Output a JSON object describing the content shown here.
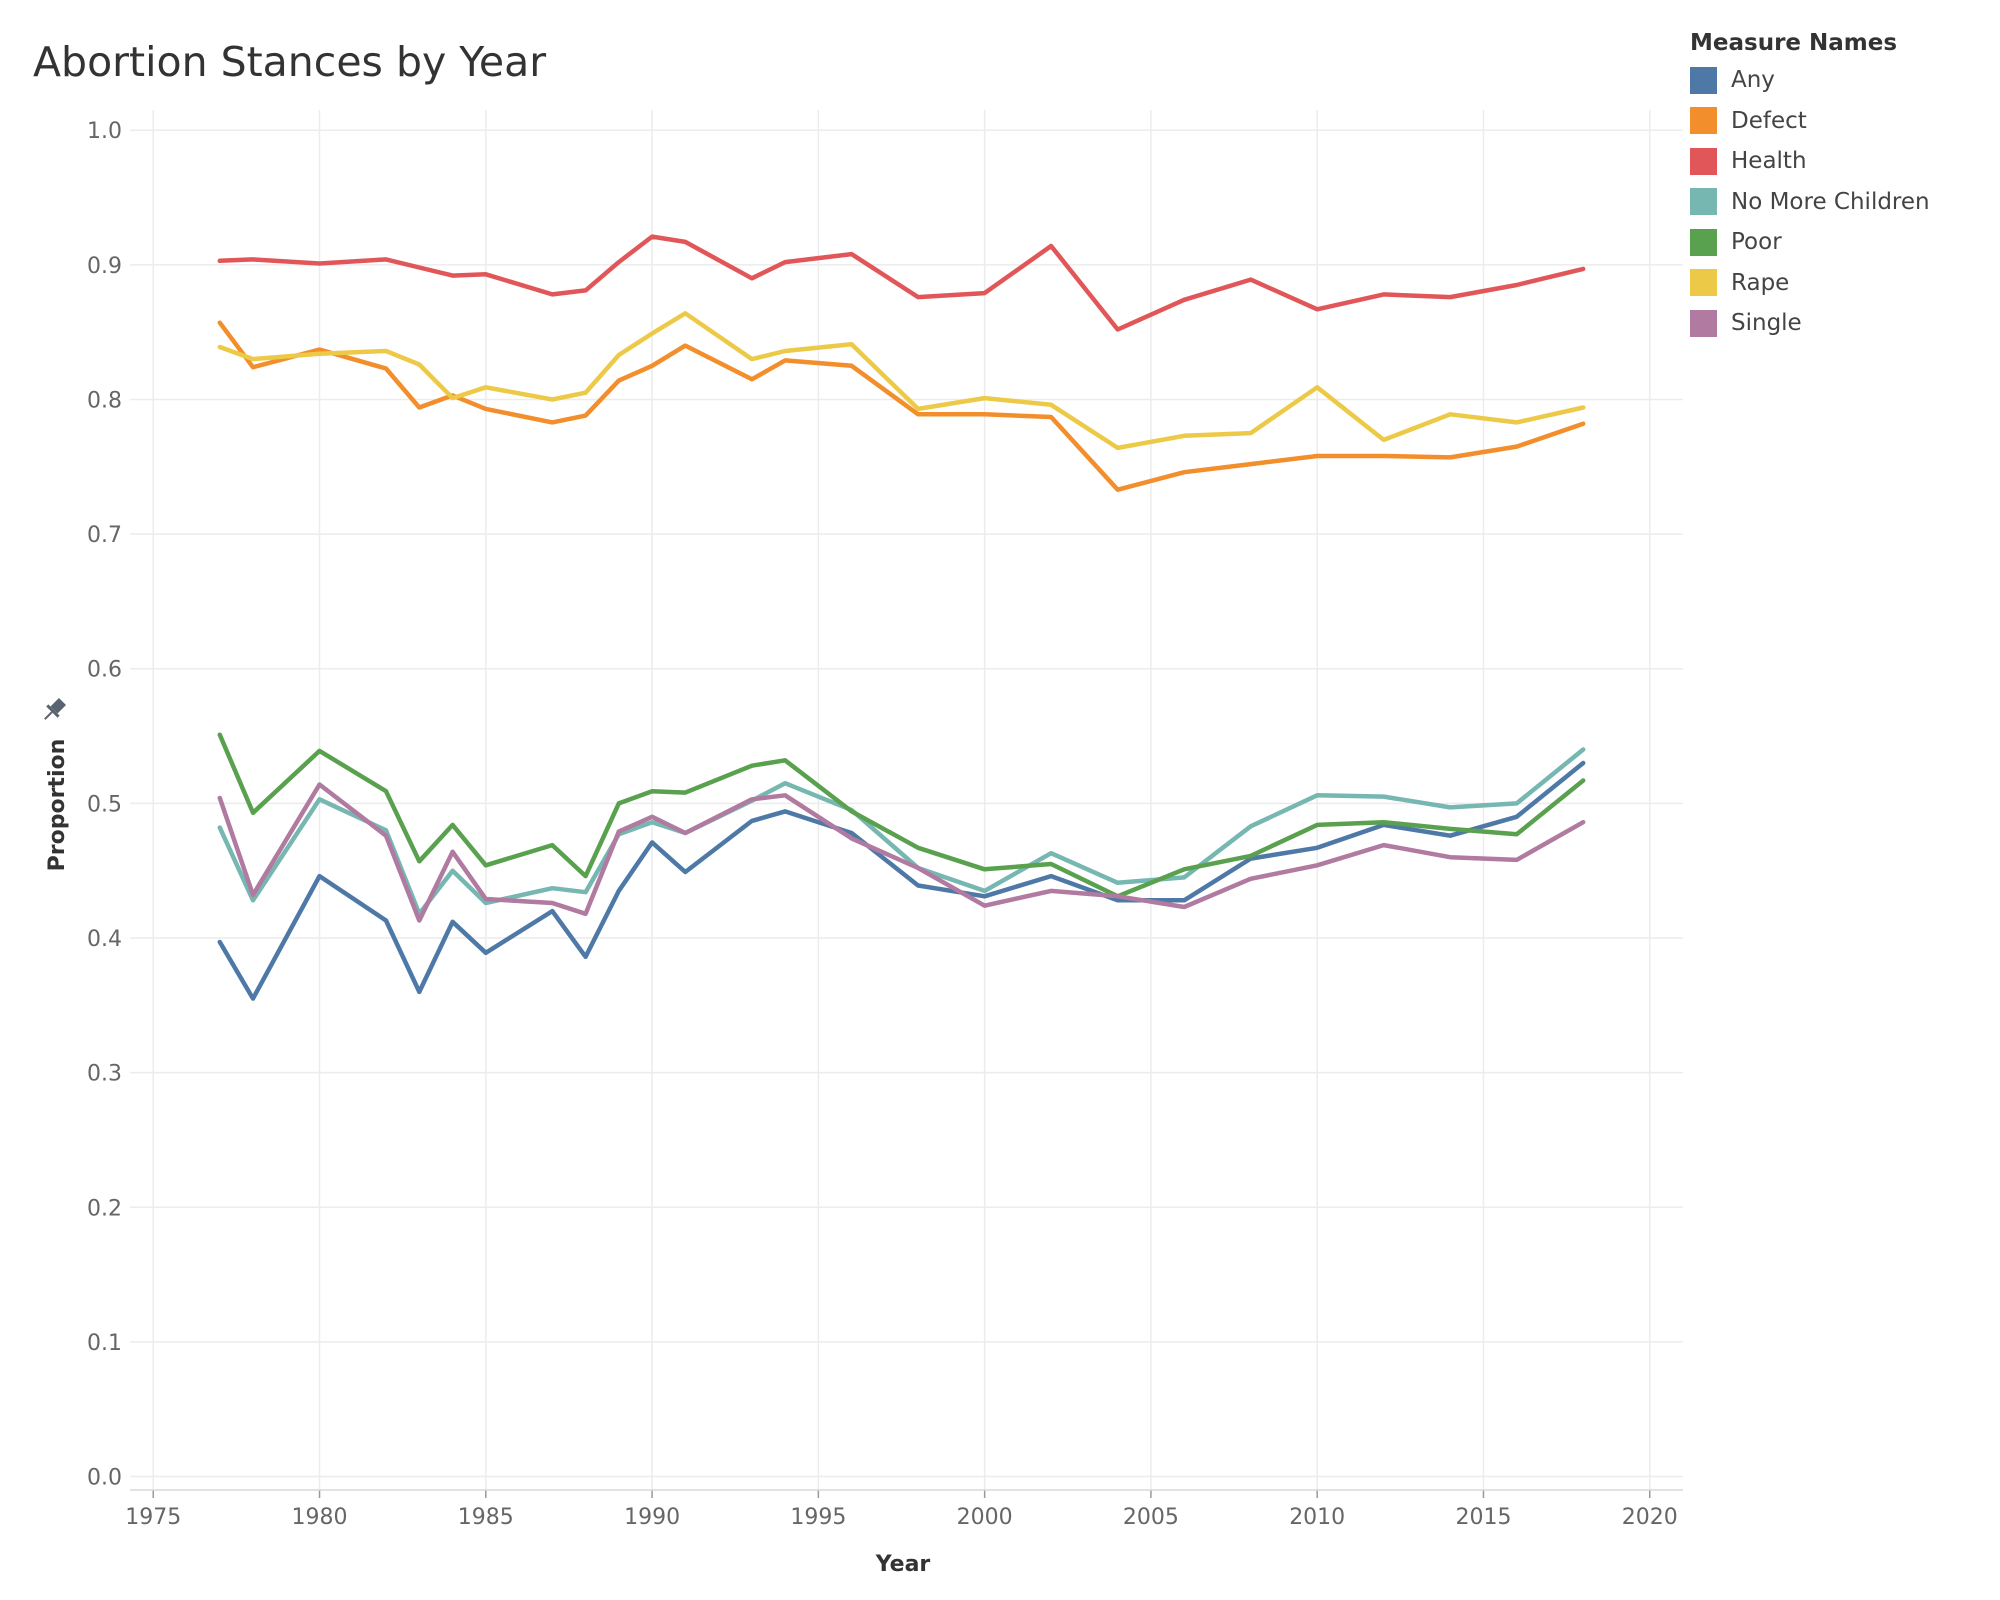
{
  "chart_data": {
    "type": "line",
    "title": "Abortion Stances by Year",
    "xlabel": "Year",
    "ylabel": "Proportion",
    "xlim": [
      1974,
      2021
    ],
    "ylim": [
      -0.01,
      1.015
    ],
    "x_ticks": [
      1975,
      1980,
      1985,
      1990,
      1995,
      2000,
      2005,
      2010,
      2015,
      2020
    ],
    "y_ticks": [
      0.0,
      0.1,
      0.2,
      0.3,
      0.4,
      0.5,
      0.6,
      0.7,
      0.8,
      0.9,
      1.0
    ],
    "y_tick_labels": [
      "0.0",
      "0.1",
      "0.2",
      "0.3",
      "0.4",
      "0.5",
      "0.6",
      "0.7",
      "0.8",
      "0.9",
      "1.0"
    ],
    "x_tick_labels": [
      "1975",
      "1980",
      "1985",
      "1990",
      "1995",
      "2000",
      "2005",
      "2010",
      "2015",
      "2020"
    ],
    "grid": true,
    "legend_title": "Measure Names",
    "legend_position": "top-right",
    "series": [
      {
        "name": "Any",
        "color": "#4e79a7",
        "x": [
          1977,
          1978,
          1980,
          1982,
          1983,
          1984,
          1985,
          1987,
          1988,
          1989,
          1990,
          1991,
          1993,
          1994,
          1996,
          1998,
          2000,
          2002,
          2004,
          2006,
          2008,
          2010,
          2012,
          2014,
          2016,
          2018
        ],
        "y": [
          0.397,
          0.355,
          0.446,
          0.413,
          0.36,
          0.412,
          0.389,
          0.42,
          0.386,
          0.435,
          0.471,
          0.449,
          0.487,
          0.494,
          0.478,
          0.439,
          0.431,
          0.446,
          0.428,
          0.428,
          0.459,
          0.467,
          0.484,
          0.476,
          0.49,
          0.53
        ]
      },
      {
        "name": "Defect",
        "color": "#f28e2b",
        "x": [
          1977,
          1978,
          1980,
          1982,
          1983,
          1984,
          1985,
          1987,
          1988,
          1989,
          1990,
          1991,
          1993,
          1994,
          1996,
          1998,
          2000,
          2002,
          2004,
          2006,
          2008,
          2010,
          2012,
          2014,
          2016,
          2018
        ],
        "y": [
          0.857,
          0.824,
          0.837,
          0.823,
          0.794,
          0.803,
          0.793,
          0.783,
          0.788,
          0.814,
          0.825,
          0.84,
          0.815,
          0.829,
          0.825,
          0.789,
          0.789,
          0.787,
          0.733,
          0.746,
          0.752,
          0.758,
          0.758,
          0.757,
          0.765,
          0.782
        ]
      },
      {
        "name": "Health",
        "color": "#e15759",
        "x": [
          1977,
          1978,
          1980,
          1982,
          1983,
          1984,
          1985,
          1987,
          1988,
          1989,
          1990,
          1991,
          1993,
          1994,
          1996,
          1998,
          2000,
          2002,
          2004,
          2006,
          2008,
          2010,
          2012,
          2014,
          2016,
          2018
        ],
        "y": [
          0.903,
          0.904,
          0.901,
          0.904,
          0.898,
          0.892,
          0.893,
          0.878,
          0.881,
          0.902,
          0.921,
          0.917,
          0.89,
          0.902,
          0.908,
          0.876,
          0.879,
          0.914,
          0.852,
          0.874,
          0.889,
          0.867,
          0.878,
          0.876,
          0.885,
          0.897
        ]
      },
      {
        "name": "No More Children",
        "color": "#76b7b2",
        "x": [
          1977,
          1978,
          1980,
          1982,
          1983,
          1984,
          1985,
          1987,
          1988,
          1989,
          1990,
          1991,
          1993,
          1994,
          1996,
          1998,
          2000,
          2002,
          2004,
          2006,
          2008,
          2010,
          2012,
          2014,
          2016,
          2018
        ],
        "y": [
          0.482,
          0.428,
          0.503,
          0.48,
          0.418,
          0.45,
          0.426,
          0.437,
          0.434,
          0.477,
          0.486,
          0.478,
          0.502,
          0.515,
          0.495,
          0.452,
          0.435,
          0.463,
          0.441,
          0.445,
          0.483,
          0.506,
          0.505,
          0.497,
          0.5,
          0.54
        ]
      },
      {
        "name": "Poor",
        "color": "#59a14f",
        "x": [
          1977,
          1978,
          1980,
          1982,
          1983,
          1984,
          1985,
          1987,
          1988,
          1989,
          1990,
          1991,
          1993,
          1994,
          1996,
          1998,
          2000,
          2002,
          2004,
          2006,
          2008,
          2010,
          2012,
          2014,
          2016,
          2018
        ],
        "y": [
          0.551,
          0.493,
          0.539,
          0.509,
          0.457,
          0.484,
          0.454,
          0.469,
          0.446,
          0.5,
          0.509,
          0.508,
          0.528,
          0.532,
          0.494,
          0.467,
          0.451,
          0.455,
          0.431,
          0.451,
          0.461,
          0.484,
          0.486,
          0.481,
          0.477,
          0.517
        ]
      },
      {
        "name": "Rape",
        "color": "#edc948",
        "x": [
          1977,
          1978,
          1980,
          1982,
          1983,
          1984,
          1985,
          1987,
          1988,
          1989,
          1990,
          1991,
          1993,
          1994,
          1996,
          1998,
          2000,
          2002,
          2004,
          2006,
          2008,
          2010,
          2012,
          2014,
          2016,
          2018
        ],
        "y": [
          0.839,
          0.83,
          0.834,
          0.836,
          0.826,
          0.801,
          0.809,
          0.8,
          0.805,
          0.833,
          0.849,
          0.864,
          0.83,
          0.836,
          0.841,
          0.793,
          0.801,
          0.796,
          0.764,
          0.773,
          0.775,
          0.809,
          0.77,
          0.789,
          0.783,
          0.794
        ]
      },
      {
        "name": "Single",
        "color": "#b07aa1",
        "x": [
          1977,
          1978,
          1980,
          1982,
          1983,
          1984,
          1985,
          1987,
          1988,
          1989,
          1990,
          1991,
          1993,
          1994,
          1996,
          1998,
          2000,
          2002,
          2004,
          2006,
          2008,
          2010,
          2012,
          2014,
          2016,
          2018
        ],
        "y": [
          0.504,
          0.432,
          0.514,
          0.476,
          0.413,
          0.464,
          0.429,
          0.426,
          0.418,
          0.479,
          0.49,
          0.478,
          0.503,
          0.506,
          0.474,
          0.452,
          0.424,
          0.435,
          0.431,
          0.423,
          0.444,
          0.454,
          0.469,
          0.46,
          0.458,
          0.486
        ]
      }
    ]
  }
}
